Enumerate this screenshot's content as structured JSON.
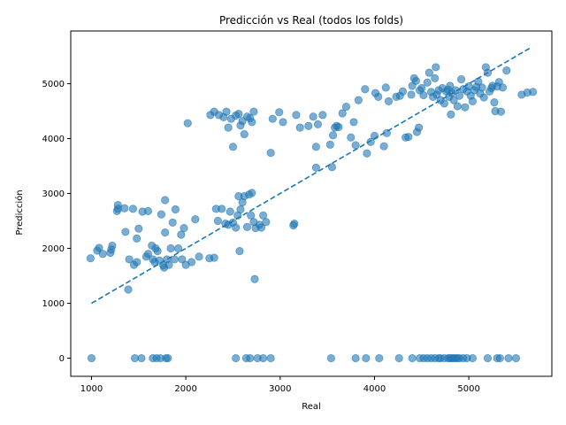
{
  "chart_data": {
    "type": "scatter",
    "title": "Predicción vs Real (todos los folds)",
    "xlabel": "Real",
    "ylabel": "Predicción",
    "xlim": [
      780,
      5880
    ],
    "ylim": [
      -330,
      5960
    ],
    "xticks": [
      1000,
      2000,
      3000,
      4000,
      5000
    ],
    "yticks": [
      0,
      1000,
      2000,
      3000,
      4000,
      5000
    ],
    "grid": false,
    "legend": "none",
    "colors": {
      "point": "#1f77b4",
      "reference_line": "#1f77b4"
    },
    "reference_line": {
      "style": "dashed",
      "x": [
        1000,
        5650
      ],
      "y": [
        1000,
        5650
      ]
    },
    "points": [
      [
        1000,
        0
      ],
      [
        1460,
        0
      ],
      [
        1530,
        0
      ],
      [
        1650,
        0
      ],
      [
        1690,
        0
      ],
      [
        1730,
        0
      ],
      [
        1790,
        0
      ],
      [
        1810,
        0
      ],
      [
        2530,
        0
      ],
      [
        2640,
        0
      ],
      [
        2680,
        0
      ],
      [
        2760,
        0
      ],
      [
        2820,
        0
      ],
      [
        2900,
        0
      ],
      [
        3540,
        0
      ],
      [
        3800,
        0
      ],
      [
        3910,
        0
      ],
      [
        4050,
        0
      ],
      [
        4260,
        0
      ],
      [
        4400,
        0
      ],
      [
        4480,
        0
      ],
      [
        4520,
        0
      ],
      [
        4560,
        0
      ],
      [
        4600,
        0
      ],
      [
        4640,
        0
      ],
      [
        4680,
        0
      ],
      [
        4700,
        0
      ],
      [
        4740,
        0
      ],
      [
        4780,
        0
      ],
      [
        4800,
        0
      ],
      [
        4820,
        0
      ],
      [
        4840,
        0
      ],
      [
        4860,
        0
      ],
      [
        4880,
        0
      ],
      [
        4900,
        0
      ],
      [
        4940,
        0
      ],
      [
        4980,
        0
      ],
      [
        5040,
        0
      ],
      [
        5200,
        0
      ],
      [
        5300,
        0
      ],
      [
        5330,
        0
      ],
      [
        5420,
        0
      ],
      [
        5500,
        0
      ],
      [
        990,
        1820
      ],
      [
        1060,
        1960
      ],
      [
        1080,
        2010
      ],
      [
        1120,
        1900
      ],
      [
        1200,
        1920
      ],
      [
        1210,
        1980
      ],
      [
        1220,
        2050
      ],
      [
        1270,
        2680
      ],
      [
        1280,
        2790
      ],
      [
        1280,
        2720
      ],
      [
        1350,
        2730
      ],
      [
        1360,
        2300
      ],
      [
        1390,
        1250
      ],
      [
        1400,
        1800
      ],
      [
        1440,
        2720
      ],
      [
        1450,
        1700
      ],
      [
        1480,
        1750
      ],
      [
        1480,
        2180
      ],
      [
        1500,
        2360
      ],
      [
        1540,
        2670
      ],
      [
        1580,
        1850
      ],
      [
        1600,
        2680
      ],
      [
        1600,
        1900
      ],
      [
        1640,
        2050
      ],
      [
        1650,
        1800
      ],
      [
        1670,
        1750
      ],
      [
        1680,
        2000
      ],
      [
        1700,
        1950
      ],
      [
        1720,
        1780
      ],
      [
        1740,
        2620
      ],
      [
        1760,
        1690
      ],
      [
        1770,
        1650
      ],
      [
        1780,
        2290
      ],
      [
        1780,
        2880
      ],
      [
        1800,
        1800
      ],
      [
        1820,
        1700
      ],
      [
        1840,
        2000
      ],
      [
        1860,
        2470
      ],
      [
        1880,
        1800
      ],
      [
        1890,
        2710
      ],
      [
        1920,
        2000
      ],
      [
        1950,
        2250
      ],
      [
        1960,
        1800
      ],
      [
        1980,
        2370
      ],
      [
        2000,
        1700
      ],
      [
        2060,
        1750
      ],
      [
        2100,
        2530
      ],
      [
        2140,
        1850
      ],
      [
        2250,
        1820
      ],
      [
        2300,
        1830
      ],
      [
        2320,
        2720
      ],
      [
        2340,
        2500
      ],
      [
        2380,
        2720
      ],
      [
        2420,
        2450
      ],
      [
        2450,
        2430
      ],
      [
        2470,
        2670
      ],
      [
        2500,
        2470
      ],
      [
        2530,
        2380
      ],
      [
        2550,
        2600
      ],
      [
        2560,
        2950
      ],
      [
        2570,
        1950
      ],
      [
        2580,
        2710
      ],
      [
        2600,
        2840
      ],
      [
        2620,
        2950
      ],
      [
        2650,
        2390
      ],
      [
        2670,
        2980
      ],
      [
        2690,
        2600
      ],
      [
        2700,
        3010
      ],
      [
        2720,
        2480
      ],
      [
        2730,
        1440
      ],
      [
        2740,
        2370
      ],
      [
        2780,
        2430
      ],
      [
        2800,
        2380
      ],
      [
        2820,
        2600
      ],
      [
        2850,
        2480
      ],
      [
        3140,
        2420
      ],
      [
        3150,
        2450
      ],
      [
        2020,
        4280
      ],
      [
        2260,
        4430
      ],
      [
        2300,
        4490
      ],
      [
        2350,
        4430
      ],
      [
        2400,
        4390
      ],
      [
        2430,
        4490
      ],
      [
        2450,
        4200
      ],
      [
        2480,
        4360
      ],
      [
        2500,
        3850
      ],
      [
        2530,
        4420
      ],
      [
        2560,
        4450
      ],
      [
        2580,
        4240
      ],
      [
        2600,
        4320
      ],
      [
        2620,
        4080
      ],
      [
        2650,
        4400
      ],
      [
        2680,
        4370
      ],
      [
        2700,
        4300
      ],
      [
        2720,
        4490
      ],
      [
        2900,
        3740
      ],
      [
        2920,
        4360
      ],
      [
        2990,
        4480
      ],
      [
        3030,
        4300
      ],
      [
        3170,
        4430
      ],
      [
        3210,
        4200
      ],
      [
        3300,
        4230
      ],
      [
        3350,
        4400
      ],
      [
        3380,
        3850
      ],
      [
        3380,
        3470
      ],
      [
        3400,
        4260
      ],
      [
        3450,
        4430
      ],
      [
        3530,
        3890
      ],
      [
        3550,
        3480
      ],
      [
        3560,
        4060
      ],
      [
        3580,
        4200
      ],
      [
        3600,
        4230
      ],
      [
        3620,
        4210
      ],
      [
        3660,
        4460
      ],
      [
        3700,
        4580
      ],
      [
        3750,
        4020
      ],
      [
        3780,
        4300
      ],
      [
        3800,
        3880
      ],
      [
        3830,
        4700
      ],
      [
        3900,
        4900
      ],
      [
        3920,
        3730
      ],
      [
        3960,
        3940
      ],
      [
        4000,
        4050
      ],
      [
        4010,
        4830
      ],
      [
        4040,
        4760
      ],
      [
        4100,
        3860
      ],
      [
        4120,
        4930
      ],
      [
        4130,
        4100
      ],
      [
        4150,
        4680
      ],
      [
        4230,
        4760
      ],
      [
        4270,
        4780
      ],
      [
        4300,
        4860
      ],
      [
        4330,
        4020
      ],
      [
        4360,
        4030
      ],
      [
        4390,
        4800
      ],
      [
        4400,
        4960
      ],
      [
        4420,
        5100
      ],
      [
        4440,
        5050
      ],
      [
        4450,
        4120
      ],
      [
        4470,
        4200
      ],
      [
        4480,
        4880
      ],
      [
        4500,
        4920
      ],
      [
        4520,
        4790
      ],
      [
        4560,
        5020
      ],
      [
        4580,
        5200
      ],
      [
        4600,
        4850
      ],
      [
        4620,
        4760
      ],
      [
        4640,
        5100
      ],
      [
        4650,
        5300
      ],
      [
        4660,
        4800
      ],
      [
        4680,
        4880
      ],
      [
        4700,
        4700
      ],
      [
        4720,
        4920
      ],
      [
        4740,
        4640
      ],
      [
        4760,
        4860
      ],
      [
        4780,
        4890
      ],
      [
        4790,
        4760
      ],
      [
        4800,
        4960
      ],
      [
        4810,
        4440
      ],
      [
        4820,
        4830
      ],
      [
        4840,
        4700
      ],
      [
        4860,
        4880
      ],
      [
        4880,
        4590
      ],
      [
        4900,
        4780
      ],
      [
        4920,
        5080
      ],
      [
        4940,
        4900
      ],
      [
        4960,
        4570
      ],
      [
        4980,
        4860
      ],
      [
        5000,
        4950
      ],
      [
        5020,
        4780
      ],
      [
        5040,
        4680
      ],
      [
        5060,
        4880
      ],
      [
        5080,
        4940
      ],
      [
        5100,
        5040
      ],
      [
        5120,
        4820
      ],
      [
        5140,
        4930
      ],
      [
        5160,
        4750
      ],
      [
        5180,
        5300
      ],
      [
        5200,
        5200
      ],
      [
        5220,
        4860
      ],
      [
        5240,
        4920
      ],
      [
        5250,
        4960
      ],
      [
        5270,
        4660
      ],
      [
        5280,
        4500
      ],
      [
        5300,
        4950
      ],
      [
        5320,
        5030
      ],
      [
        5340,
        4490
      ],
      [
        5360,
        4930
      ],
      [
        5400,
        5240
      ],
      [
        5560,
        4800
      ],
      [
        5620,
        4840
      ],
      [
        5680,
        4850
      ]
    ]
  }
}
